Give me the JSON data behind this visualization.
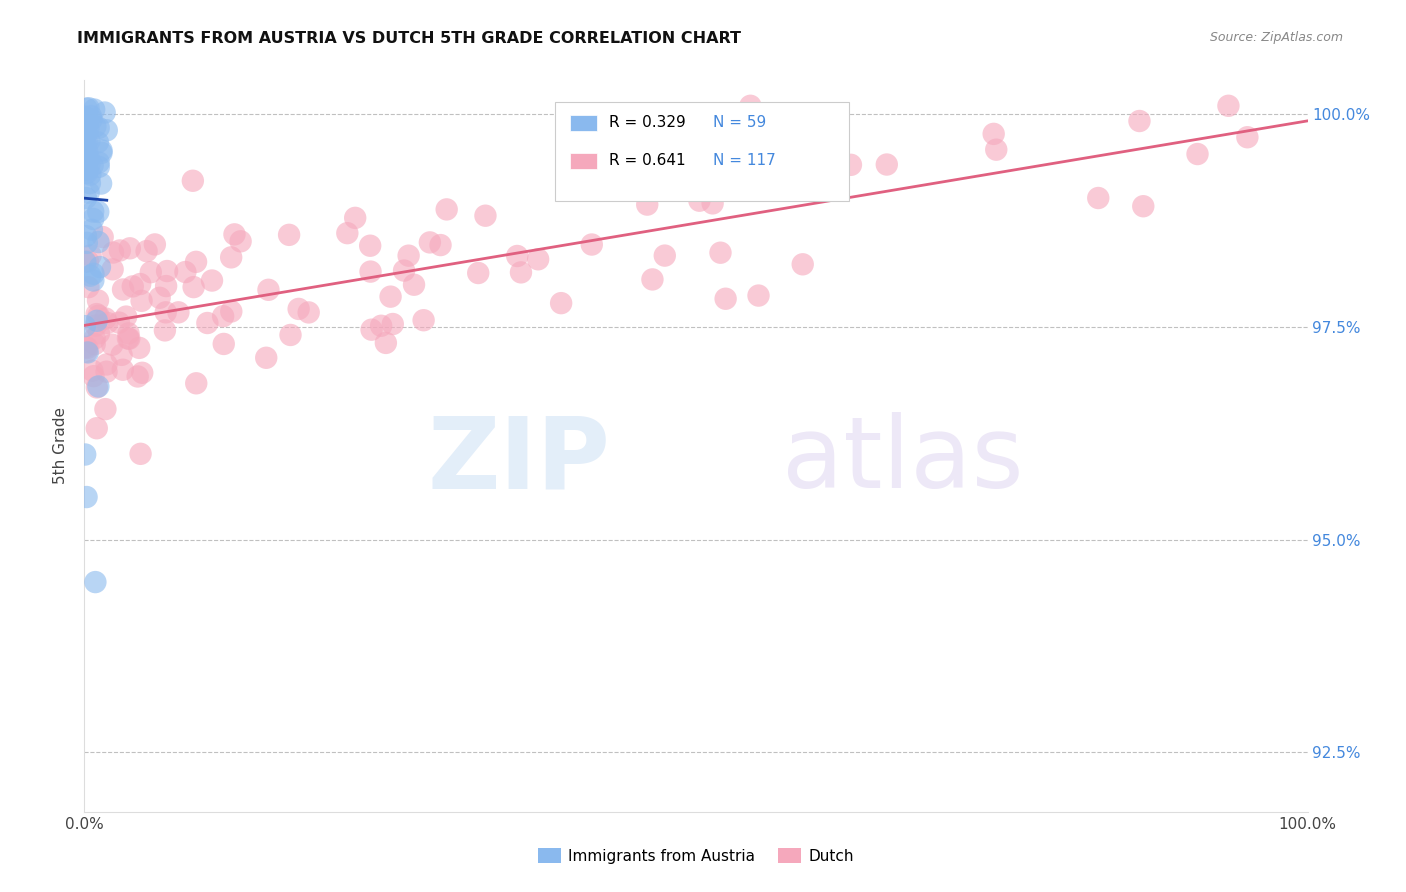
{
  "title": "IMMIGRANTS FROM AUSTRIA VS DUTCH 5TH GRADE CORRELATION CHART",
  "source": "Source: ZipAtlas.com",
  "ylabel": "5th Grade",
  "xmin": 0.0,
  "xmax": 1.0,
  "ymin": 0.918,
  "ymax": 1.004,
  "austria_R": 0.329,
  "austria_N": 59,
  "dutch_R": 0.641,
  "dutch_N": 117,
  "austria_color": "#8ab9ee",
  "dutch_color": "#f5a8bc",
  "austria_line_color": "#1a44aa",
  "dutch_line_color": "#e06080",
  "legend_label_austria": "Immigrants from Austria",
  "legend_label_dutch": "Dutch",
  "ytick_vals": [
    0.925,
    0.95,
    0.975,
    1.0
  ],
  "ytick_labels": [
    "92.5%",
    "95.0%",
    "97.5%",
    "100.0%"
  ]
}
